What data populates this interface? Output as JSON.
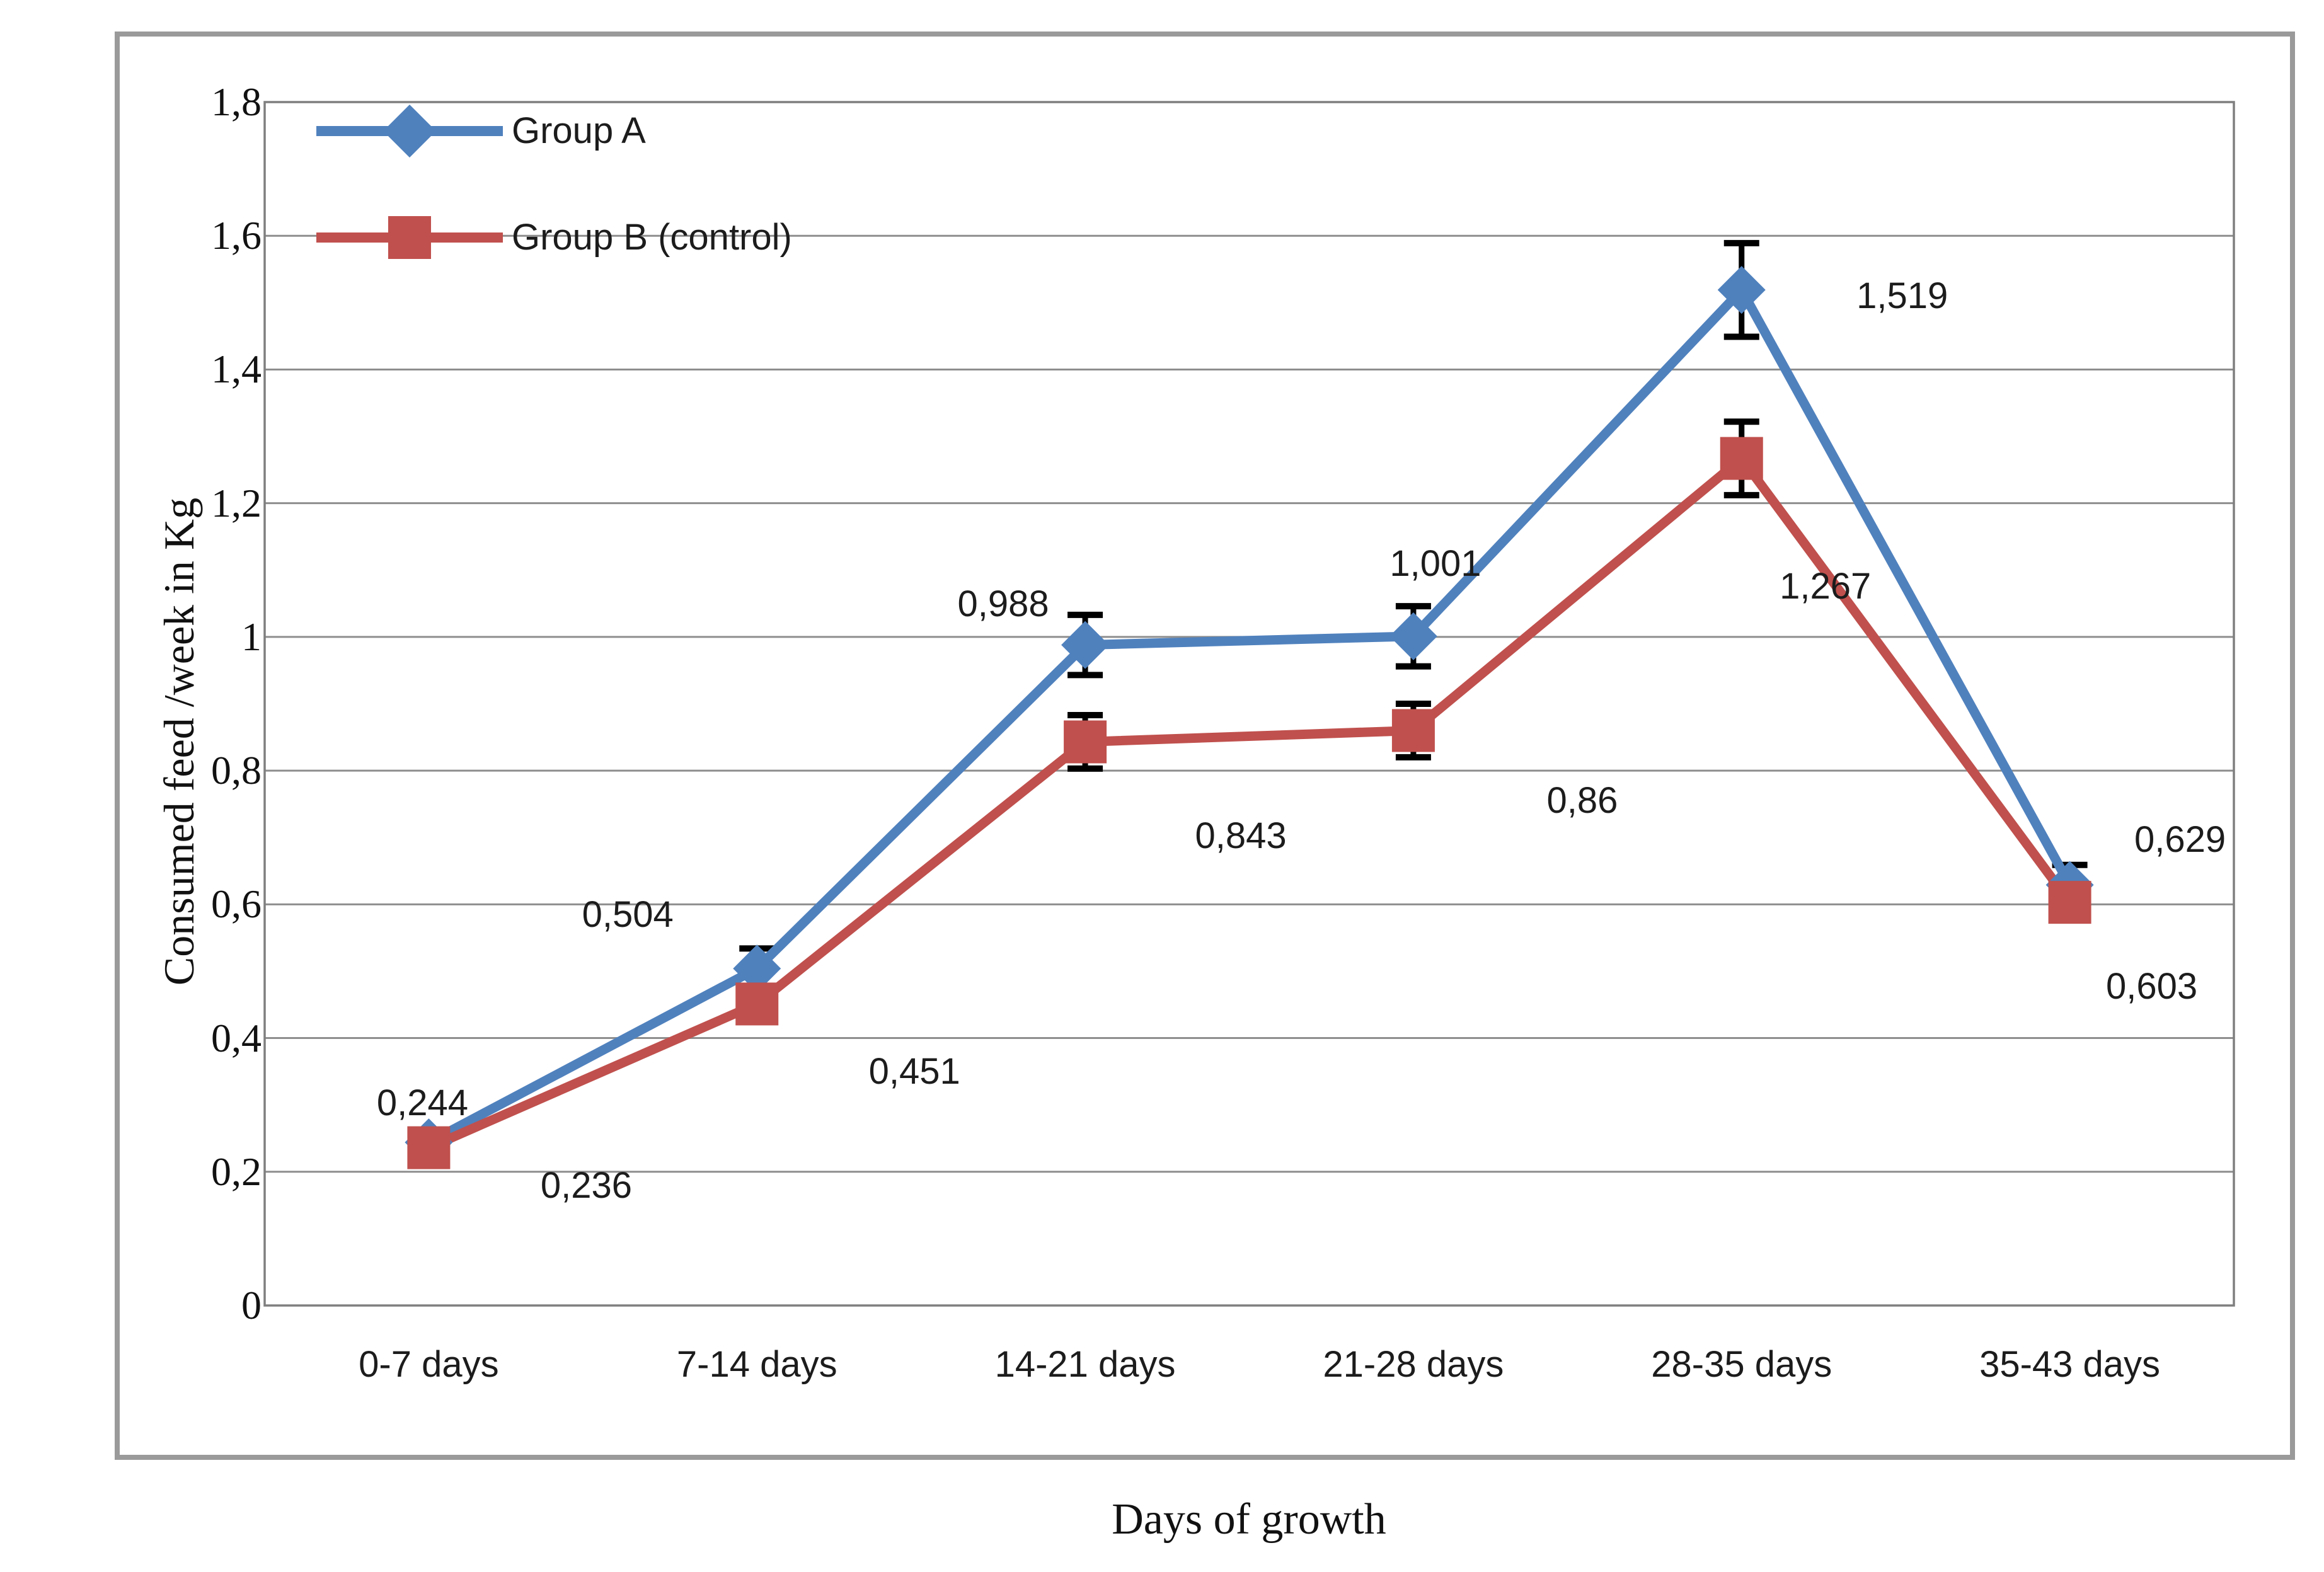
{
  "chart_data": {
    "type": "line",
    "title": "",
    "xlabel": "Days of growth",
    "ylabel": "Consumed feed /week in Kg",
    "categories": [
      "0-7 days",
      "7-14 days",
      "14-21 days",
      "21-28 days",
      "28-35 days",
      "35-43 days"
    ],
    "y_ticks": [
      "1,8",
      "1,6",
      "1,4",
      "1,2",
      "1",
      "0,8",
      "0,6",
      "0,4",
      "0,2",
      "0"
    ],
    "ylim": [
      0,
      1.8
    ],
    "y_step": 0.2,
    "grid": true,
    "decimal_separator": ",",
    "legend_position": "top-left-inside",
    "error_bar_color": "#000000",
    "gridline_color": "#8e8e8e",
    "series": [
      {
        "name": "Group A",
        "color": "#4f81bd",
        "marker": "diamond",
        "values": [
          0.244,
          0.504,
          0.988,
          1.001,
          1.519,
          0.629
        ],
        "labels": [
          "0,244",
          "0,504",
          "0,988",
          "1,001",
          "1,519",
          "0,629"
        ],
        "errors": [
          0,
          0.03,
          0.045,
          0.045,
          0.07,
          0.03
        ],
        "label_offsets": [
          {
            "dx": -10,
            "dy": -62
          },
          {
            "dx": -205,
            "dy": -85
          },
          {
            "dx": -130,
            "dy": -65
          },
          {
            "dx": 35,
            "dy": -115
          },
          {
            "dx": 255,
            "dy": 10
          },
          {
            "dx": 175,
            "dy": -72
          }
        ]
      },
      {
        "name": "Group B (control)",
        "color": "#c0504d",
        "marker": "square",
        "values": [
          0.236,
          0.451,
          0.843,
          0.86,
          1.267,
          0.603
        ],
        "labels": [
          "0,236",
          "0,451",
          "0,843",
          "0,86",
          "1,267",
          "0,603"
        ],
        "errors": [
          0,
          0,
          0.04,
          0.04,
          0.055,
          0.02
        ],
        "label_offsets": [
          {
            "dx": 250,
            "dy": 60
          },
          {
            "dx": 250,
            "dy": 108
          },
          {
            "dx": 247,
            "dy": 150
          },
          {
            "dx": 268,
            "dy": 112
          },
          {
            "dx": 133,
            "dy": 203
          },
          {
            "dx": 130,
            "dy": 134
          }
        ]
      }
    ],
    "legend": [
      {
        "label": "Group A",
        "marker": "diamond",
        "color": "#4f81bd"
      },
      {
        "label": "Group B (control)",
        "marker": "square",
        "color": "#c0504d"
      }
    ]
  }
}
